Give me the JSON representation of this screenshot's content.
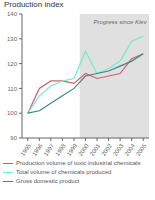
{
  "chart_data": {
    "type": "line",
    "title": "Production index",
    "x": [
      1995,
      1996,
      1997,
      1998,
      1999,
      2000,
      2001,
      2002,
      2003,
      2004,
      2005
    ],
    "series": [
      {
        "name": "Production volume of toxic industrial chemicals",
        "color": "#d45f6e",
        "values": [
          100,
          110,
          113,
          113,
          112,
          116,
          114,
          115,
          116,
          122,
          124
        ]
      },
      {
        "name": "Total volume of chemicals produced",
        "color": "#6eeecc",
        "values": [
          100,
          107,
          111,
          113,
          114,
          125,
          116,
          118,
          121,
          129,
          131
        ]
      },
      {
        "name": "Gross domestic product",
        "color": "#3d8888",
        "values": [
          100,
          101,
          104,
          107,
          110,
          115,
          116,
          117,
          119,
          121,
          124
        ]
      }
    ],
    "xlim": [
      1994.5,
      2005.5
    ],
    "xticks": [
      1995,
      1996,
      1997,
      1998,
      1999,
      2000,
      2001,
      2002,
      2003,
      2004,
      2005
    ],
    "ylim": [
      90,
      140
    ],
    "yticks": [
      90,
      100,
      110,
      120,
      130,
      140
    ],
    "shaded_region": {
      "x": [
        1999.5,
        2005.5
      ],
      "color": "#e0e0e0"
    },
    "annotations": [
      {
        "text": "Progress since Kiev",
        "x": 2003,
        "y": 138.5
      }
    ],
    "grid": false,
    "legend": "lower left"
  }
}
